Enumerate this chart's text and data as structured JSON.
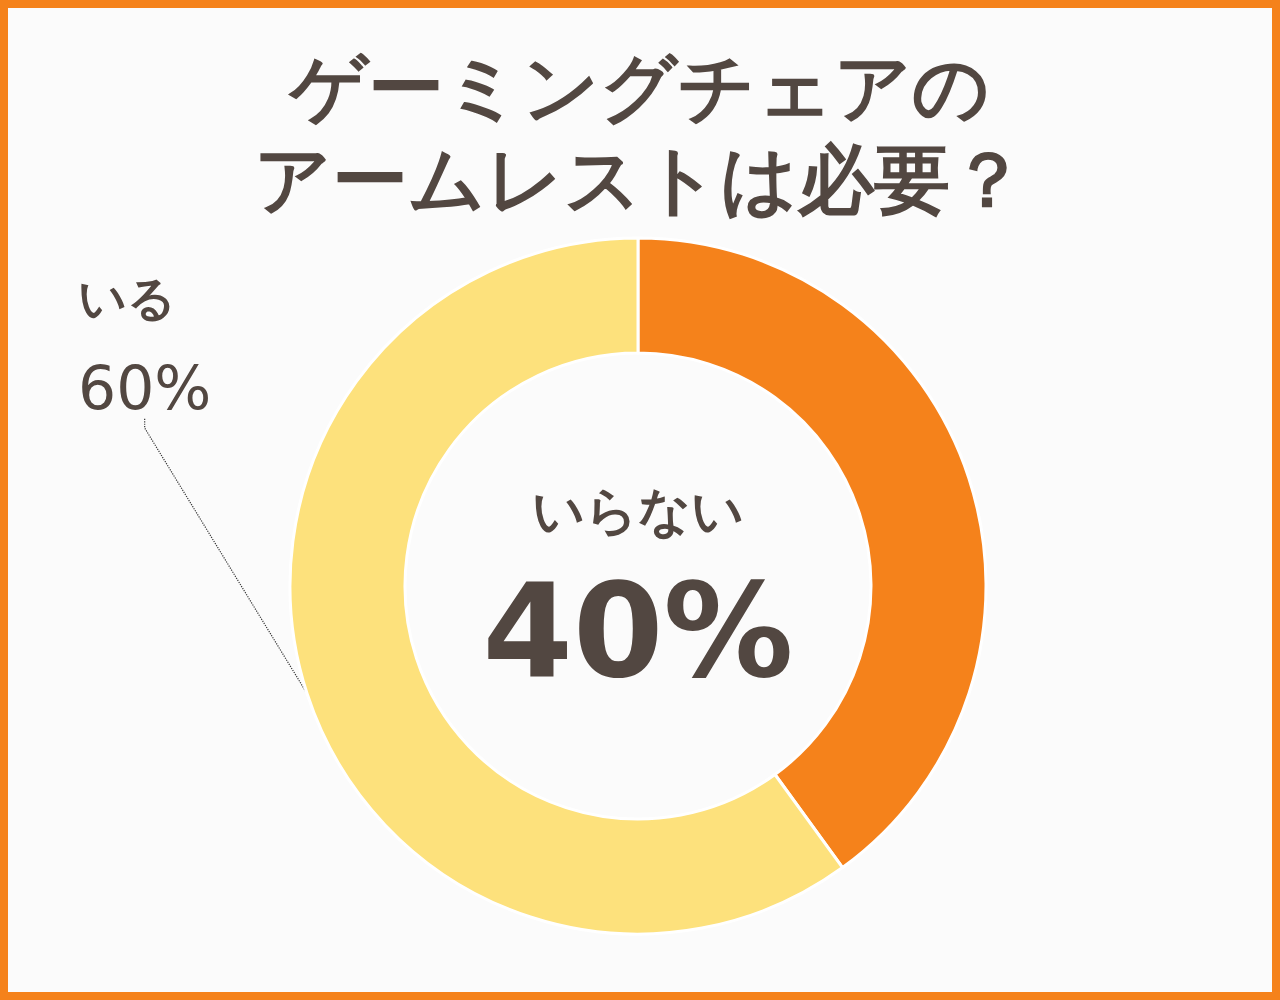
{
  "chart_data": {
    "type": "donut",
    "title": "ゲーミングチェアのアームレストは必要？",
    "categories": [
      "いらない",
      "いる"
    ],
    "values": [
      40,
      60
    ],
    "value_labels": [
      "40%",
      "60%"
    ],
    "colors": [
      "#f5821b",
      "#fde17c"
    ]
  }
}
